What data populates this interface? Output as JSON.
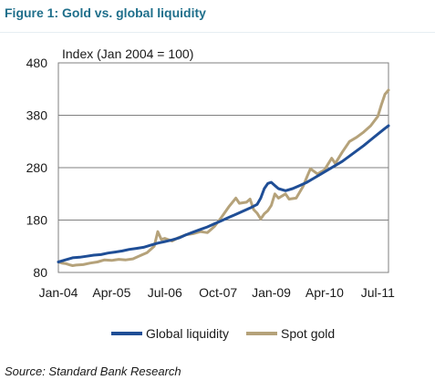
{
  "figure_title": "Figure 1: Gold vs. global liquidity",
  "source": "Source: Standard Bank Research",
  "chart_data": {
    "type": "line",
    "title": "",
    "ylabel": "Index (Jan 2004 = 100)",
    "xlabel": "",
    "ylim": [
      80,
      480
    ],
    "yticks": [
      80,
      180,
      280,
      380,
      480
    ],
    "xlim": [
      "2004-01",
      "2011-10"
    ],
    "xticks": [
      "Jan-04",
      "Apr-05",
      "Jul-06",
      "Oct-07",
      "Jan-09",
      "Apr-10",
      "Jul-11"
    ],
    "xtick_positions": [
      "2004-01",
      "2005-04",
      "2006-07",
      "2007-10",
      "2009-01",
      "2010-04",
      "2011-07"
    ],
    "grid": "horizontal",
    "legend": "bottom",
    "colors": {
      "Global liquidity": "#1f4e96",
      "Spot gold": "#b5a27a"
    },
    "series": [
      {
        "name": "Global liquidity",
        "points": [
          [
            "2004-01",
            100
          ],
          [
            "2004-03",
            104
          ],
          [
            "2004-05",
            108
          ],
          [
            "2004-07",
            109
          ],
          [
            "2004-09",
            111
          ],
          [
            "2004-11",
            113
          ],
          [
            "2005-01",
            114
          ],
          [
            "2005-03",
            117
          ],
          [
            "2005-05",
            119
          ],
          [
            "2005-07",
            121
          ],
          [
            "2005-09",
            124
          ],
          [
            "2005-11",
            126
          ],
          [
            "2006-01",
            128
          ],
          [
            "2006-03",
            132
          ],
          [
            "2006-05",
            136
          ],
          [
            "2006-07",
            139
          ],
          [
            "2006-09",
            142
          ],
          [
            "2006-11",
            146
          ],
          [
            "2007-01",
            152
          ],
          [
            "2007-03",
            157
          ],
          [
            "2007-05",
            162
          ],
          [
            "2007-07",
            167
          ],
          [
            "2007-09",
            173
          ],
          [
            "2007-11",
            179
          ],
          [
            "2008-01",
            185
          ],
          [
            "2008-03",
            191
          ],
          [
            "2008-05",
            197
          ],
          [
            "2008-07",
            203
          ],
          [
            "2008-09",
            210
          ],
          [
            "2008-10",
            222
          ],
          [
            "2008-11",
            240
          ],
          [
            "2008-12",
            250
          ],
          [
            "2009-01",
            252
          ],
          [
            "2009-02",
            246
          ],
          [
            "2009-03",
            240
          ],
          [
            "2009-05",
            236
          ],
          [
            "2009-07",
            240
          ],
          [
            "2009-09",
            246
          ],
          [
            "2009-11",
            252
          ],
          [
            "2010-01",
            260
          ],
          [
            "2010-03",
            268
          ],
          [
            "2010-05",
            276
          ],
          [
            "2010-07",
            284
          ],
          [
            "2010-09",
            292
          ],
          [
            "2010-11",
            302
          ],
          [
            "2011-01",
            312
          ],
          [
            "2011-03",
            322
          ],
          [
            "2011-05",
            333
          ],
          [
            "2011-07",
            344
          ],
          [
            "2011-09",
            355
          ],
          [
            "2011-10",
            360
          ]
        ]
      },
      {
        "name": "Spot gold",
        "points": [
          [
            "2004-01",
            100
          ],
          [
            "2004-02",
            98
          ],
          [
            "2004-03",
            97
          ],
          [
            "2004-04",
            95
          ],
          [
            "2004-05",
            93
          ],
          [
            "2004-06",
            94
          ],
          [
            "2004-08",
            95
          ],
          [
            "2004-10",
            98
          ],
          [
            "2004-12",
            100
          ],
          [
            "2005-02",
            104
          ],
          [
            "2005-04",
            103
          ],
          [
            "2005-06",
            105
          ],
          [
            "2005-08",
            104
          ],
          [
            "2005-10",
            106
          ],
          [
            "2005-12",
            112
          ],
          [
            "2006-02",
            118
          ],
          [
            "2006-04",
            130
          ],
          [
            "2006-05",
            158
          ],
          [
            "2006-06",
            143
          ],
          [
            "2006-07",
            145
          ],
          [
            "2006-09",
            140
          ],
          [
            "2006-11",
            147
          ],
          [
            "2007-01",
            152
          ],
          [
            "2007-03",
            154
          ],
          [
            "2007-05",
            158
          ],
          [
            "2007-07",
            156
          ],
          [
            "2007-09",
            168
          ],
          [
            "2007-11",
            186
          ],
          [
            "2008-01",
            205
          ],
          [
            "2008-03",
            222
          ],
          [
            "2008-04",
            212
          ],
          [
            "2008-06",
            214
          ],
          [
            "2008-07",
            220
          ],
          [
            "2008-08",
            200
          ],
          [
            "2008-09",
            193
          ],
          [
            "2008-10",
            182
          ],
          [
            "2008-11",
            192
          ],
          [
            "2008-12",
            198
          ],
          [
            "2009-01",
            208
          ],
          [
            "2009-02",
            230
          ],
          [
            "2009-03",
            222
          ],
          [
            "2009-05",
            230
          ],
          [
            "2009-06",
            220
          ],
          [
            "2009-08",
            222
          ],
          [
            "2009-10",
            245
          ],
          [
            "2009-11",
            262
          ],
          [
            "2009-12",
            278
          ],
          [
            "2010-02",
            268
          ],
          [
            "2010-04",
            276
          ],
          [
            "2010-06",
            298
          ],
          [
            "2010-07",
            288
          ],
          [
            "2010-09",
            310
          ],
          [
            "2010-11",
            330
          ],
          [
            "2011-01",
            338
          ],
          [
            "2011-03",
            348
          ],
          [
            "2011-05",
            360
          ],
          [
            "2011-07",
            378
          ],
          [
            "2011-08",
            400
          ],
          [
            "2011-09",
            420
          ],
          [
            "2011-10",
            428
          ]
        ]
      }
    ]
  }
}
